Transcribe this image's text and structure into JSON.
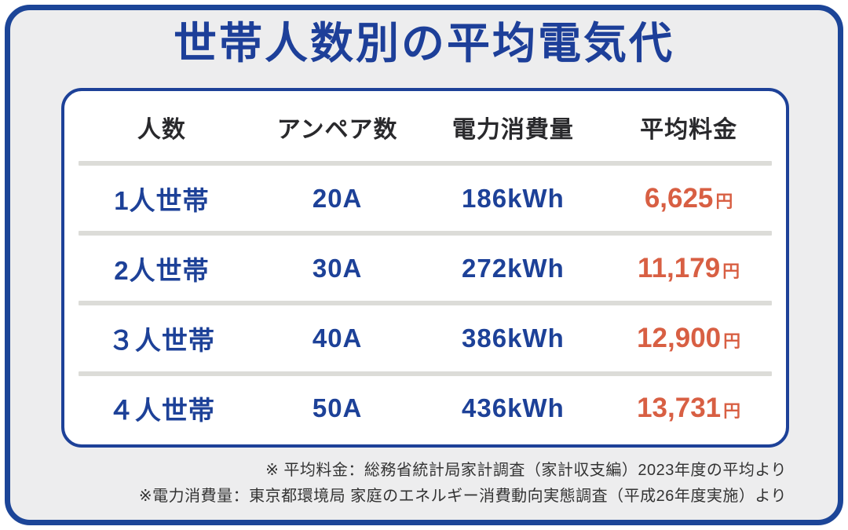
{
  "title": "世帯人数別の平均電気代",
  "colors": {
    "frame_border_blue": "#1c4598",
    "title_blue": "#1d3f99",
    "data_blue": "#1d4198",
    "price_orange": "#d85f43",
    "frame_background_gray": "#ededee",
    "divider_gray": "#dcdcd8"
  },
  "table": {
    "headers": [
      "人数",
      "アンペア数",
      "電力消費量",
      "平均料金"
    ],
    "rows": [
      {
        "household": "1人世帯",
        "amperage": "20A",
        "consumption": "186kWh",
        "price": "6,625",
        "currency": "円"
      },
      {
        "household": "2人世帯",
        "amperage": "30A",
        "consumption": "272kWh",
        "price": "11,179",
        "currency": "円"
      },
      {
        "household": "３人世帯",
        "amperage": "40A",
        "consumption": "386kWh",
        "price": "12,900",
        "currency": "円"
      },
      {
        "household": "４人世帯",
        "amperage": "50A",
        "consumption": "436kWh",
        "price": "13,731",
        "currency": "円"
      }
    ]
  },
  "footnotes": [
    "※ 平均料金：総務省統計局家計調査（家計収支編）2023年度の平均より",
    "※電力消費量：東京都環境局 家庭のエネルギー消費動向実態調査（平成26年度実施）より"
  ],
  "chart_data": {
    "type": "table",
    "title": "世帯人数別の平均電気代",
    "columns": [
      "人数",
      "アンペア数",
      "電力消費量",
      "平均料金"
    ],
    "rows": [
      [
        "1人世帯",
        "20A",
        "186kWh",
        "6,625円"
      ],
      [
        "2人世帯",
        "30A",
        "272kWh",
        "11,179円"
      ],
      [
        "３人世帯",
        "40A",
        "386kWh",
        "12,900円"
      ],
      [
        "４人世帯",
        "50A",
        "436kWh",
        "13,731円"
      ]
    ],
    "numeric": {
      "household_size": [
        1,
        2,
        3,
        4
      ],
      "amperage_A": [
        20,
        30,
        40,
        50
      ],
      "consumption_kWh": [
        186,
        272,
        386,
        436
      ],
      "average_fee_yen": [
        6625,
        11179,
        12900,
        13731
      ]
    },
    "footnotes": [
      "※ 平均料金：総務省統計局家計調査（家計収支編）2023年度の平均より",
      "※電力消費量：東京都環境局 家庭のエネルギー消費動向実態調査（平成26年度実施）より"
    ]
  }
}
